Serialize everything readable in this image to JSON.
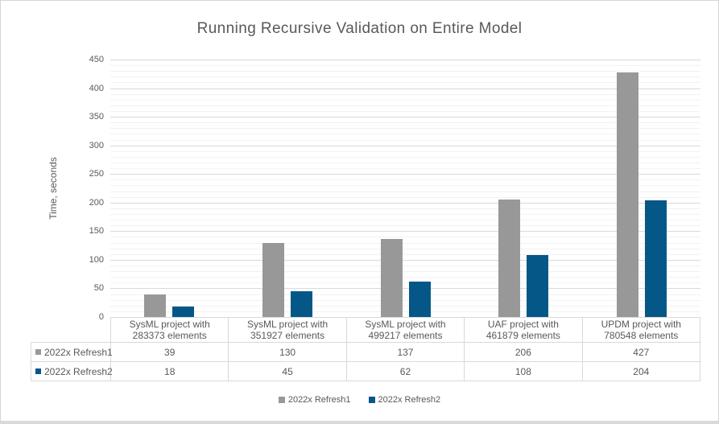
{
  "window": {
    "background": "#ffffff",
    "border_color": "#d9d9d9"
  },
  "chart_data": {
    "type": "bar",
    "title": "Running Recursive Validation on Entire Model",
    "xlabel": "",
    "ylabel": "Time, seconds",
    "ylim": [
      0,
      450
    ],
    "y_major_step": 50,
    "y_minor_step": 10,
    "y_ticks": [
      0,
      50,
      100,
      150,
      200,
      250,
      300,
      350,
      400,
      450
    ],
    "grid": true,
    "legend_position": "bottom",
    "categories": [
      "SysML project with 283373 elements",
      "SysML project with 351927 elements",
      "SysML project with 499217 elements",
      "UAF project with 461879 elements",
      "UPDM project with 780548 elements"
    ],
    "category_label_lines": [
      [
        "SysML project with",
        "283373 elements"
      ],
      [
        "SysML project with",
        "351927 elements"
      ],
      [
        "SysML project with",
        "499217 elements"
      ],
      [
        "UAF project with",
        "461879 elements"
      ],
      [
        "UPDM project with",
        "780548 elements"
      ]
    ],
    "series": [
      {
        "name": "2022x Refresh1",
        "color": "#989898",
        "values": [
          39,
          130,
          137,
          206,
          427
        ]
      },
      {
        "name": "2022x Refresh2",
        "color": "#055788",
        "values": [
          18,
          45,
          62,
          108,
          204
        ]
      }
    ],
    "data_table_shown": true
  },
  "colors": {
    "text": "#595959",
    "grid_major": "#d9d9d9",
    "grid_minor": "#f2f2f2",
    "table_border": "#d9d9d9",
    "series1": "#989898",
    "series2": "#055788"
  }
}
